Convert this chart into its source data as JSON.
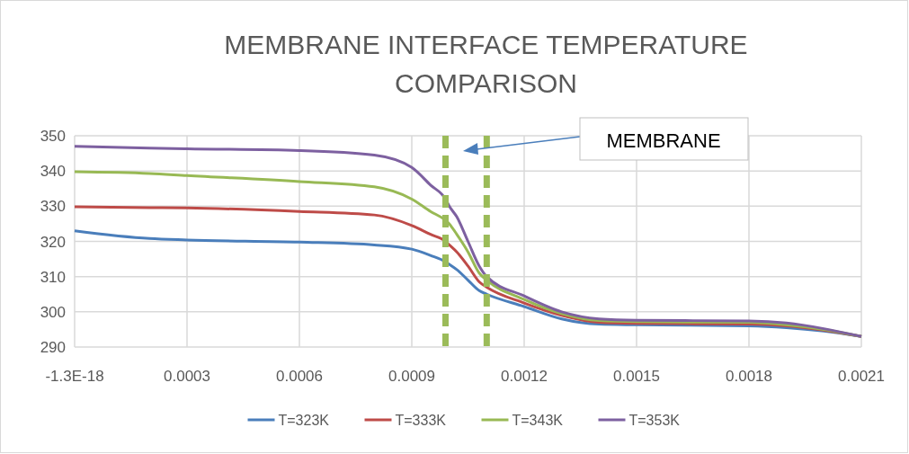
{
  "chart_data": {
    "type": "line",
    "title": "MEMBRANE INTERFACE TEMPERATURE COMPARISON",
    "x": [
      0,
      0.0002,
      0.0003,
      0.0006,
      0.0008,
      0.0009,
      0.00095,
      0.00099,
      0.001,
      0.00102,
      0.00105,
      0.00108,
      0.0011,
      0.0012,
      0.0013,
      0.0014,
      0.0015,
      0.0018,
      0.0019,
      0.002,
      0.0021
    ],
    "series": [
      {
        "name": "T=323K",
        "color": "#4a7ebb",
        "values": [
          323,
          320.8,
          320.4,
          319.8,
          319,
          317.8,
          316,
          314.2,
          313.5,
          312,
          309,
          306,
          305,
          301.5,
          298,
          296.5,
          296.3,
          296,
          295.5,
          294.5,
          293
        ]
      },
      {
        "name": "T=333K",
        "color": "#be4b48",
        "values": [
          329.8,
          329.6,
          329.5,
          328.5,
          327.5,
          324.5,
          322,
          320,
          319,
          317,
          313,
          308.5,
          307,
          302.5,
          299,
          297,
          296.7,
          296.5,
          296,
          294.8,
          293
        ]
      },
      {
        "name": "T=343K",
        "color": "#98b954",
        "values": [
          339.8,
          339.3,
          338.7,
          337,
          335.5,
          332,
          328.5,
          326,
          325,
          322,
          317,
          311,
          309,
          303.5,
          299.5,
          297.5,
          297.2,
          297,
          296.3,
          295,
          293
        ]
      },
      {
        "name": "T=353K",
        "color": "#7d60a0",
        "values": [
          347,
          346.5,
          346.3,
          345.8,
          344.5,
          341,
          336,
          332,
          330,
          327,
          320,
          313,
          310,
          304.5,
          300,
          298,
          297.6,
          297.4,
          296.8,
          295.2,
          293
        ]
      }
    ],
    "xlim": [
      0,
      0.0021
    ],
    "xticks": [
      {
        "value": 0,
        "label": "-1.3E-18"
      },
      0.0003,
      0.0006,
      0.0009,
      0.0012,
      0.0015,
      0.0018,
      0.0021
    ],
    "ylim": [
      290,
      350
    ],
    "yticks": [
      290,
      300,
      310,
      320,
      330,
      340,
      350
    ],
    "grid": true,
    "legend": "bottom",
    "line_style": "solid",
    "ref_lines": [
      {
        "axis": "x",
        "value": 0.00099,
        "color": "#9bbb59",
        "line_style": "dashed"
      },
      {
        "axis": "x",
        "value": 0.0011,
        "color": "#9bbb59",
        "line_style": "dashed"
      }
    ],
    "annotations": [
      "MEMBRANE"
    ]
  }
}
